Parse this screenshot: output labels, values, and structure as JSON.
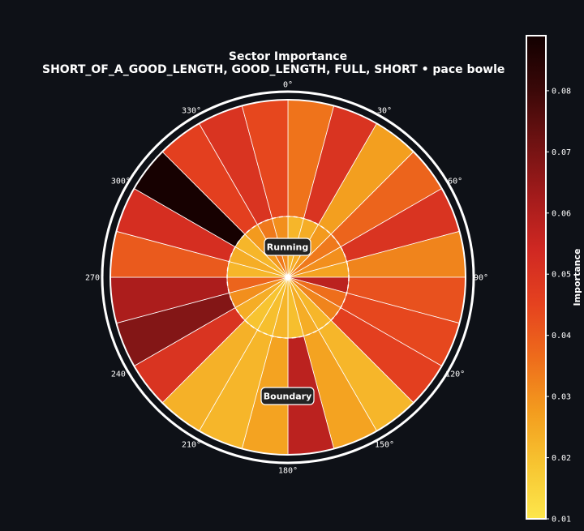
{
  "chart_data": {
    "type": "polar-bar",
    "title": "Sector Importance",
    "subtitle": "SHORT_OF_A_GOOD_LENGTH, GOOD_LENGTH, FULL, SHORT • pace bowle",
    "angle_labels": [
      "0°",
      "30°",
      "60°",
      "90°",
      "120°",
      "150°",
      "180°",
      "210°",
      "240°",
      "270°",
      "300°",
      "330°"
    ],
    "zone_labels": {
      "inner": "Running",
      "outer": "Boundary"
    },
    "colorbar": {
      "label": "Importance",
      "min": 0.01,
      "max": 0.089,
      "ticks": [
        "0.01",
        "0.02",
        "0.03",
        "0.04",
        "0.05",
        "0.06",
        "0.07",
        "0.08"
      ],
      "colormap": [
        "#fde74c",
        "#f7c531",
        "#f39c1e",
        "#ee6c1b",
        "#e5421f",
        "#d02822",
        "#a31b1b",
        "#6f1212",
        "#3a0808",
        "#120000"
      ]
    },
    "sector_width_deg": 15,
    "sector_start_deg": [
      0,
      15,
      30,
      45,
      60,
      75,
      90,
      105,
      120,
      135,
      150,
      165,
      180,
      195,
      210,
      225,
      240,
      255,
      270,
      285,
      300,
      315,
      330,
      345
    ],
    "inner_values": [
      0.022,
      0.024,
      0.028,
      0.034,
      0.03,
      0.026,
      0.058,
      0.036,
      0.032,
      0.022,
      0.024,
      0.02,
      0.022,
      0.02,
      0.019,
      0.024,
      0.03,
      0.038,
      0.022,
      0.024,
      0.022,
      0.028,
      0.034,
      0.03
    ],
    "outer_values": [
      0.035,
      0.05,
      0.027,
      0.038,
      0.05,
      0.032,
      0.042,
      0.044,
      0.046,
      0.022,
      0.026,
      0.058,
      0.026,
      0.022,
      0.023,
      0.05,
      0.068,
      0.061,
      0.04,
      0.052,
      0.088,
      0.046,
      0.05,
      0.044
    ]
  }
}
